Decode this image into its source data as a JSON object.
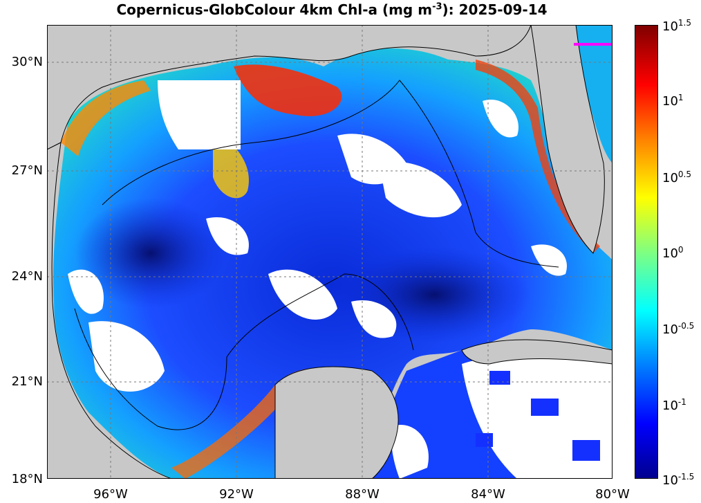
{
  "header": {
    "title_prefix": "Copernicus-GlobColour 4km Chl-a (mg m",
    "title_exponent": "-3",
    "title_suffix": "): 2025-09-14"
  },
  "map": {
    "lon_range": [
      -98,
      -80
    ],
    "lat_range": [
      18,
      31
    ],
    "lat_ticks": [
      {
        "value": 30,
        "label": "30°N"
      },
      {
        "value": 27,
        "label": "27°N"
      },
      {
        "value": 24,
        "label": "24°N"
      },
      {
        "value": 21,
        "label": "21°N"
      },
      {
        "value": 18,
        "label": "18°N"
      }
    ],
    "lon_ticks": [
      {
        "value": -96,
        "label": "96°W"
      },
      {
        "value": -92,
        "label": "92°W"
      },
      {
        "value": -88,
        "label": "88°W"
      },
      {
        "value": -84,
        "label": "84°W"
      },
      {
        "value": -80,
        "label": "80°W"
      }
    ],
    "colors": {
      "land": "#c8c8c8",
      "cloud": "#ffffff",
      "ocean_low": "#0a1a9a",
      "ocean_mid": "#1f5fff",
      "coast_high": "#ff2a00",
      "highlight_line": "#ff00ff"
    }
  },
  "colorbar": {
    "ticks": [
      {
        "base": "10",
        "exp": "1.5"
      },
      {
        "base": "10",
        "exp": "1"
      },
      {
        "base": "10",
        "exp": "0.5"
      },
      {
        "base": "10",
        "exp": "0"
      },
      {
        "base": "10",
        "exp": "-0.5"
      },
      {
        "base": "10",
        "exp": "-1"
      },
      {
        "base": "10",
        "exp": "-1.5"
      }
    ]
  }
}
